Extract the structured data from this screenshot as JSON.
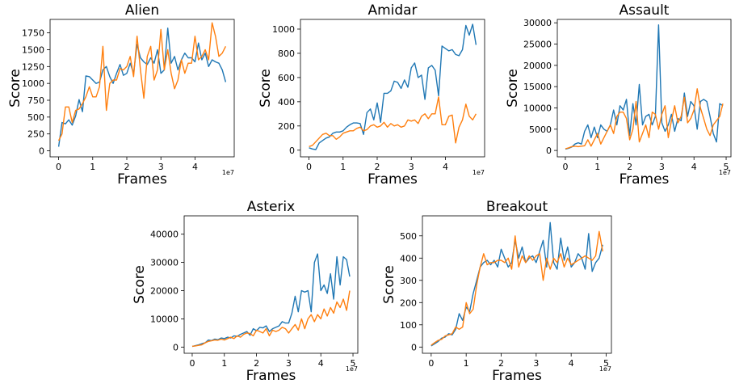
{
  "colors": {
    "series1": "#1f77b4",
    "series2": "#ff7f0e"
  },
  "chart_data": [
    {
      "type": "line",
      "title": "Alien",
      "xlabel": "Frames",
      "ylabel": "Score",
      "x_multiplier_label": "1e7",
      "xlim": [
        -0.25,
        5.15
      ],
      "ylim": [
        -90,
        1950
      ],
      "xticks": [
        0,
        1,
        2,
        3,
        4
      ],
      "yticks": [
        0,
        250,
        500,
        750,
        1000,
        1250,
        1500,
        1750
      ],
      "grid": false,
      "x": [
        0,
        0.1,
        0.2,
        0.3,
        0.4,
        0.5,
        0.6,
        0.7,
        0.8,
        0.9,
        1.0,
        1.1,
        1.2,
        1.3,
        1.4,
        1.5,
        1.6,
        1.7,
        1.8,
        1.9,
        2.0,
        2.1,
        2.2,
        2.3,
        2.4,
        2.5,
        2.6,
        2.7,
        2.8,
        2.9,
        3.0,
        3.1,
        3.2,
        3.3,
        3.4,
        3.5,
        3.6,
        3.7,
        3.8,
        3.9,
        4.0,
        4.1,
        4.2,
        4.3,
        4.4,
        4.5,
        4.6,
        4.7,
        4.8,
        4.9
      ],
      "series": [
        {
          "values": [
            60,
            420,
            400,
            460,
            380,
            520,
            760,
            580,
            1110,
            1100,
            1050,
            1000,
            1020,
            1200,
            1250,
            1100,
            1000,
            1150,
            1280,
            1120,
            1150,
            1300,
            1150,
            1580,
            1380,
            1320,
            1280,
            1380,
            1300,
            1500,
            1150,
            1200,
            1820,
            1300,
            1400,
            1200,
            1350,
            1450,
            1380,
            1380,
            1320,
            1600,
            1350,
            1450,
            1250,
            1350,
            1320,
            1300,
            1200,
            1020
          ]
        },
        {
          "values": [
            150,
            250,
            650,
            650,
            420,
            600,
            620,
            700,
            800,
            950,
            800,
            800,
            950,
            1550,
            600,
            1000,
            1050,
            1050,
            1220,
            1200,
            1250,
            1400,
            1100,
            1700,
            1200,
            780,
            1400,
            1550,
            1050,
            1200,
            1800,
            1200,
            1500,
            1150,
            920,
            1050,
            1350,
            1150,
            1300,
            1300,
            1700,
            1350,
            1400,
            1500,
            1350,
            1900,
            1700,
            1400,
            1450,
            1550
          ]
        }
      ]
    },
    {
      "type": "line",
      "title": "Amidar",
      "xlabel": "Frames",
      "ylabel": "Score",
      "x_multiplier_label": "1e7",
      "xlim": [
        -0.25,
        5.15
      ],
      "ylim": [
        -55,
        1080
      ],
      "xticks": [
        0,
        1,
        2,
        3,
        4
      ],
      "yticks": [
        0,
        200,
        400,
        600,
        800,
        1000
      ],
      "grid": false,
      "x": [
        0,
        0.1,
        0.2,
        0.3,
        0.4,
        0.5,
        0.6,
        0.7,
        0.8,
        0.9,
        1.0,
        1.1,
        1.2,
        1.3,
        1.4,
        1.5,
        1.6,
        1.7,
        1.8,
        1.9,
        2.0,
        2.1,
        2.2,
        2.3,
        2.4,
        2.5,
        2.6,
        2.7,
        2.8,
        2.9,
        3.0,
        3.1,
        3.2,
        3.3,
        3.4,
        3.5,
        3.6,
        3.7,
        3.8,
        3.9,
        4.0,
        4.1,
        4.2,
        4.3,
        4.4,
        4.5,
        4.6,
        4.7,
        4.8,
        4.9
      ],
      "series": [
        {
          "values": [
            20,
            10,
            5,
            60,
            80,
            100,
            110,
            140,
            150,
            150,
            160,
            190,
            210,
            225,
            225,
            220,
            130,
            310,
            340,
            250,
            390,
            230,
            470,
            470,
            490,
            570,
            560,
            510,
            580,
            520,
            680,
            720,
            600,
            620,
            420,
            680,
            700,
            660,
            450,
            860,
            840,
            820,
            830,
            790,
            780,
            830,
            1030,
            950,
            1040,
            870
          ]
        },
        {
          "values": [
            30,
            40,
            70,
            100,
            130,
            140,
            120,
            120,
            90,
            110,
            140,
            150,
            160,
            160,
            180,
            190,
            160,
            170,
            200,
            210,
            190,
            200,
            230,
            190,
            220,
            200,
            210,
            190,
            200,
            250,
            240,
            250,
            220,
            280,
            300,
            260,
            300,
            300,
            440,
            210,
            210,
            280,
            290,
            60,
            190,
            250,
            380,
            280,
            250,
            300
          ]
        }
      ]
    },
    {
      "type": "line",
      "title": "Assault",
      "xlabel": "Frames",
      "ylabel": "Score",
      "x_multiplier_label": "1e7",
      "xlim": [
        -0.25,
        5.15
      ],
      "ylim": [
        -1500,
        30800
      ],
      "xticks": [
        0,
        1,
        2,
        3,
        4,
        5
      ],
      "yticks": [
        0,
        5000,
        10000,
        15000,
        20000,
        25000,
        30000
      ],
      "grid": false,
      "x": [
        0,
        0.1,
        0.2,
        0.3,
        0.4,
        0.5,
        0.6,
        0.7,
        0.8,
        0.9,
        1.0,
        1.1,
        1.2,
        1.3,
        1.4,
        1.5,
        1.6,
        1.7,
        1.8,
        1.9,
        2.0,
        2.1,
        2.2,
        2.3,
        2.4,
        2.5,
        2.6,
        2.7,
        2.8,
        2.9,
        3.0,
        3.1,
        3.2,
        3.3,
        3.4,
        3.5,
        3.6,
        3.7,
        3.8,
        3.9,
        4.0,
        4.1,
        4.2,
        4.3,
        4.4,
        4.5,
        4.6,
        4.7,
        4.8,
        4.9
      ],
      "series": [
        {
          "values": [
            300,
            500,
            800,
            1500,
            1800,
            1500,
            4500,
            6000,
            3000,
            5500,
            3000,
            6000,
            5000,
            4500,
            6000,
            9500,
            6000,
            10500,
            9500,
            12000,
            3500,
            11000,
            6000,
            15500,
            6000,
            8000,
            8500,
            6000,
            8000,
            29500,
            6500,
            4500,
            6000,
            8500,
            4500,
            7500,
            7000,
            13500,
            8000,
            11500,
            10500,
            5000,
            11500,
            12000,
            11500,
            8000,
            4000,
            2000,
            11000,
            10500
          ]
        },
        {
          "values": [
            400,
            600,
            900,
            1000,
            900,
            1000,
            1100,
            2500,
            1000,
            2500,
            4000,
            1500,
            3000,
            4500,
            6000,
            4000,
            8000,
            9000,
            9000,
            7500,
            2500,
            5000,
            11500,
            2000,
            4000,
            6000,
            3000,
            9000,
            8500,
            5000,
            8500,
            10500,
            3000,
            7000,
            10500,
            6500,
            8000,
            12500,
            6500,
            7500,
            9500,
            14500,
            10000,
            7500,
            5000,
            3500,
            6000,
            7000,
            8000,
            11000
          ]
        }
      ]
    },
    {
      "type": "line",
      "title": "Asterix",
      "xlabel": "Frames",
      "ylabel": "Score",
      "x_multiplier_label": "1e7",
      "xlim": [
        -0.25,
        5.15
      ],
      "ylim": [
        -2200,
        46500
      ],
      "xticks": [
        0,
        1,
        2,
        3,
        4,
        5
      ],
      "yticks": [
        0,
        10000,
        20000,
        30000,
        40000
      ],
      "grid": false,
      "x": [
        0,
        0.1,
        0.2,
        0.3,
        0.4,
        0.5,
        0.6,
        0.7,
        0.8,
        0.9,
        1.0,
        1.1,
        1.2,
        1.3,
        1.4,
        1.5,
        1.6,
        1.7,
        1.8,
        1.9,
        2.0,
        2.1,
        2.2,
        2.3,
        2.4,
        2.5,
        2.6,
        2.7,
        2.8,
        2.9,
        3.0,
        3.1,
        3.2,
        3.3,
        3.4,
        3.5,
        3.6,
        3.7,
        3.8,
        3.9,
        4.0,
        4.1,
        4.2,
        4.3,
        4.4,
        4.5,
        4.6,
        4.7,
        4.8,
        4.9
      ],
      "series": [
        {
          "values": [
            200,
            500,
            800,
            1200,
            1500,
            2500,
            2300,
            2800,
            2600,
            3200,
            3000,
            3500,
            3200,
            4000,
            3800,
            4500,
            5000,
            5500,
            4200,
            6500,
            5800,
            7000,
            6800,
            7500,
            5500,
            6500,
            7000,
            7500,
            9000,
            8500,
            8500,
            12000,
            18000,
            12500,
            20000,
            19500,
            20000,
            12500,
            30000,
            33000,
            20000,
            22000,
            19000,
            26000,
            17000,
            32000,
            22000,
            32000,
            31000,
            25000
          ]
        },
        {
          "values": [
            300,
            400,
            600,
            800,
            1500,
            2000,
            2200,
            2500,
            2400,
            2800,
            2500,
            3000,
            3500,
            3000,
            4000,
            3500,
            4500,
            5000,
            4800,
            4000,
            6000,
            5500,
            5000,
            6500,
            4000,
            6000,
            5500,
            6000,
            7000,
            6500,
            5000,
            6500,
            8000,
            6000,
            10000,
            6500,
            10000,
            11500,
            9000,
            11500,
            10000,
            13500,
            11000,
            14000,
            12000,
            16000,
            14000,
            17000,
            13000,
            20000
          ]
        }
      ]
    },
    {
      "type": "line",
      "title": "Breakout",
      "xlabel": "Frames",
      "ylabel": "Score",
      "x_multiplier_label": "1e7",
      "xlim": [
        -0.25,
        5.15
      ],
      "ylim": [
        -28,
        590
      ],
      "xticks": [
        0,
        1,
        2,
        3,
        4,
        5
      ],
      "yticks": [
        0,
        100,
        200,
        300,
        400,
        500
      ],
      "grid": false,
      "x": [
        0,
        0.1,
        0.2,
        0.3,
        0.4,
        0.5,
        0.6,
        0.7,
        0.8,
        0.9,
        1.0,
        1.1,
        1.2,
        1.3,
        1.4,
        1.5,
        1.6,
        1.7,
        1.8,
        1.9,
        2.0,
        2.1,
        2.2,
        2.3,
        2.4,
        2.5,
        2.6,
        2.7,
        2.8,
        2.9,
        3.0,
        3.1,
        3.2,
        3.3,
        3.4,
        3.5,
        3.6,
        3.7,
        3.8,
        3.9,
        4.0,
        4.1,
        4.2,
        4.3,
        4.4,
        4.5,
        4.6,
        4.7,
        4.8,
        4.9
      ],
      "series": [
        {
          "values": [
            5,
            15,
            25,
            40,
            45,
            60,
            55,
            80,
            150,
            120,
            180,
            160,
            240,
            300,
            360,
            380,
            390,
            370,
            390,
            360,
            440,
            400,
            360,
            380,
            480,
            400,
            450,
            380,
            400,
            410,
            380,
            430,
            480,
            360,
            560,
            380,
            350,
            490,
            390,
            450,
            360,
            380,
            420,
            400,
            350,
            510,
            340,
            380,
            400,
            460
          ]
        },
        {
          "values": [
            8,
            20,
            30,
            35,
            50,
            55,
            60,
            90,
            80,
            90,
            200,
            150,
            170,
            280,
            360,
            420,
            370,
            380,
            380,
            390,
            390,
            380,
            400,
            350,
            500,
            360,
            410,
            380,
            410,
            390,
            410,
            420,
            300,
            400,
            350,
            400,
            380,
            420,
            360,
            400,
            370,
            380,
            390,
            400,
            410,
            400,
            390,
            410,
            520,
            430
          ]
        }
      ]
    }
  ]
}
